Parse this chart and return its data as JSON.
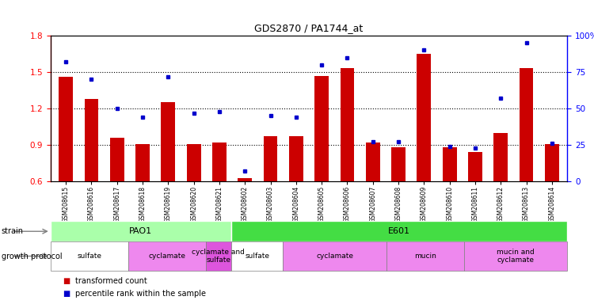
{
  "title": "GDS2870 / PA1744_at",
  "samples": [
    "GSM208615",
    "GSM208616",
    "GSM208617",
    "GSM208618",
    "GSM208619",
    "GSM208620",
    "GSM208621",
    "GSM208602",
    "GSM208603",
    "GSM208604",
    "GSM208605",
    "GSM208606",
    "GSM208607",
    "GSM208608",
    "GSM208609",
    "GSM208610",
    "GSM208611",
    "GSM208612",
    "GSM208613",
    "GSM208614"
  ],
  "transformed_count": [
    1.46,
    1.28,
    0.96,
    0.91,
    1.25,
    0.91,
    0.92,
    0.63,
    0.97,
    0.97,
    1.47,
    1.53,
    0.92,
    0.88,
    1.65,
    0.88,
    0.84,
    1.0,
    1.53,
    0.91
  ],
  "percentile_rank": [
    82,
    70,
    50,
    44,
    72,
    47,
    48,
    7,
    45,
    44,
    80,
    85,
    27,
    27,
    90,
    24,
    23,
    57,
    95,
    26
  ],
  "bar_color": "#cc0000",
  "dot_color": "#0000cc",
  "ylim_left": [
    0.6,
    1.8
  ],
  "ylim_right": [
    0,
    100
  ],
  "yticks_left": [
    0.6,
    0.9,
    1.2,
    1.5,
    1.8
  ],
  "yticks_right": [
    0,
    25,
    50,
    75,
    100
  ],
  "ytick_labels_right": [
    "0",
    "25",
    "50",
    "75",
    "100%"
  ],
  "hlines": [
    0.9,
    1.2,
    1.5
  ],
  "strain_groups": [
    {
      "label": "PAO1",
      "start": 0,
      "end": 7,
      "color": "#aaffaa"
    },
    {
      "label": "E601",
      "start": 7,
      "end": 20,
      "color": "#44dd44"
    }
  ],
  "growth_groups": [
    {
      "label": "sulfate",
      "start": 0,
      "end": 3,
      "color": "#ffffff"
    },
    {
      "label": "cyclamate",
      "start": 3,
      "end": 6,
      "color": "#ee88ee"
    },
    {
      "label": "cyclamate and\nsulfate",
      "start": 6,
      "end": 7,
      "color": "#dd55dd"
    },
    {
      "label": "sulfate",
      "start": 7,
      "end": 9,
      "color": "#ffffff"
    },
    {
      "label": "cyclamate",
      "start": 9,
      "end": 13,
      "color": "#ee88ee"
    },
    {
      "label": "mucin",
      "start": 13,
      "end": 16,
      "color": "#ee88ee"
    },
    {
      "label": "mucin and\ncyclamate",
      "start": 16,
      "end": 20,
      "color": "#ee88ee"
    }
  ]
}
